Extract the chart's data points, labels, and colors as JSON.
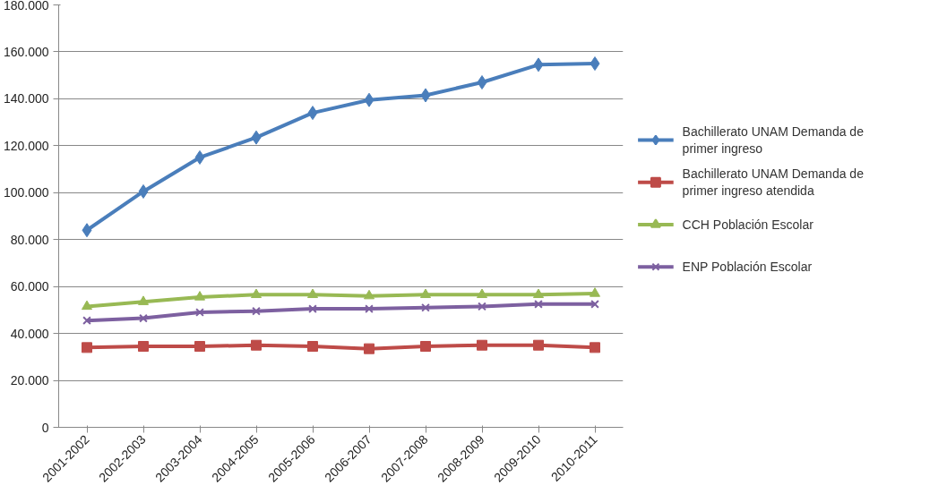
{
  "chart_data": {
    "type": "line",
    "categories": [
      "2001-2002",
      "2002-2003",
      "2003-2004",
      "2004-2005",
      "2005-2006",
      "2006-2007",
      "2007-2008",
      "2008-2009",
      "2009-2010",
      "2010-2011"
    ],
    "series": [
      {
        "name": "Bachillerato UNAM Demanda de primer ingreso",
        "color": "#4a7ebb",
        "marker": "diamond",
        "values": [
          84000,
          100500,
          115000,
          123500,
          134000,
          139500,
          141500,
          147000,
          154500,
          155000
        ]
      },
      {
        "name": "Bachillerato UNAM Demanda de primer ingreso atendida",
        "color": "#be4b48",
        "marker": "square",
        "values": [
          34000,
          34500,
          34500,
          35000,
          34500,
          33500,
          34500,
          35000,
          35000,
          34000
        ]
      },
      {
        "name": "CCH Población Escolar",
        "color": "#98b954",
        "marker": "triangle",
        "values": [
          51500,
          53500,
          55500,
          56500,
          56500,
          56000,
          56500,
          56500,
          56500,
          57000
        ]
      },
      {
        "name": "ENP Población Escolar",
        "color": "#7d60a0",
        "marker": "cross",
        "values": [
          45500,
          46500,
          49000,
          49500,
          50500,
          50500,
          51000,
          51500,
          52500,
          52500
        ]
      }
    ],
    "ylim": [
      0,
      180000
    ],
    "yticks": [
      0,
      {
        "value": 20000,
        "label": "20.000"
      },
      {
        "value": 40000,
        "label": "40.000"
      },
      {
        "value": 60000,
        "label": "60.000"
      },
      {
        "value": 80000,
        "label": "80.000"
      },
      {
        "value": 100000,
        "label": "100.000"
      },
      {
        "value": 120000,
        "label": "120.000"
      },
      {
        "value": 140000,
        "label": "140.000"
      },
      {
        "value": 160000,
        "label": "160.000"
      },
      {
        "value": 180000,
        "label": "180.000"
      }
    ],
    "grid": "y",
    "legend": "right",
    "line_style": "solid"
  }
}
